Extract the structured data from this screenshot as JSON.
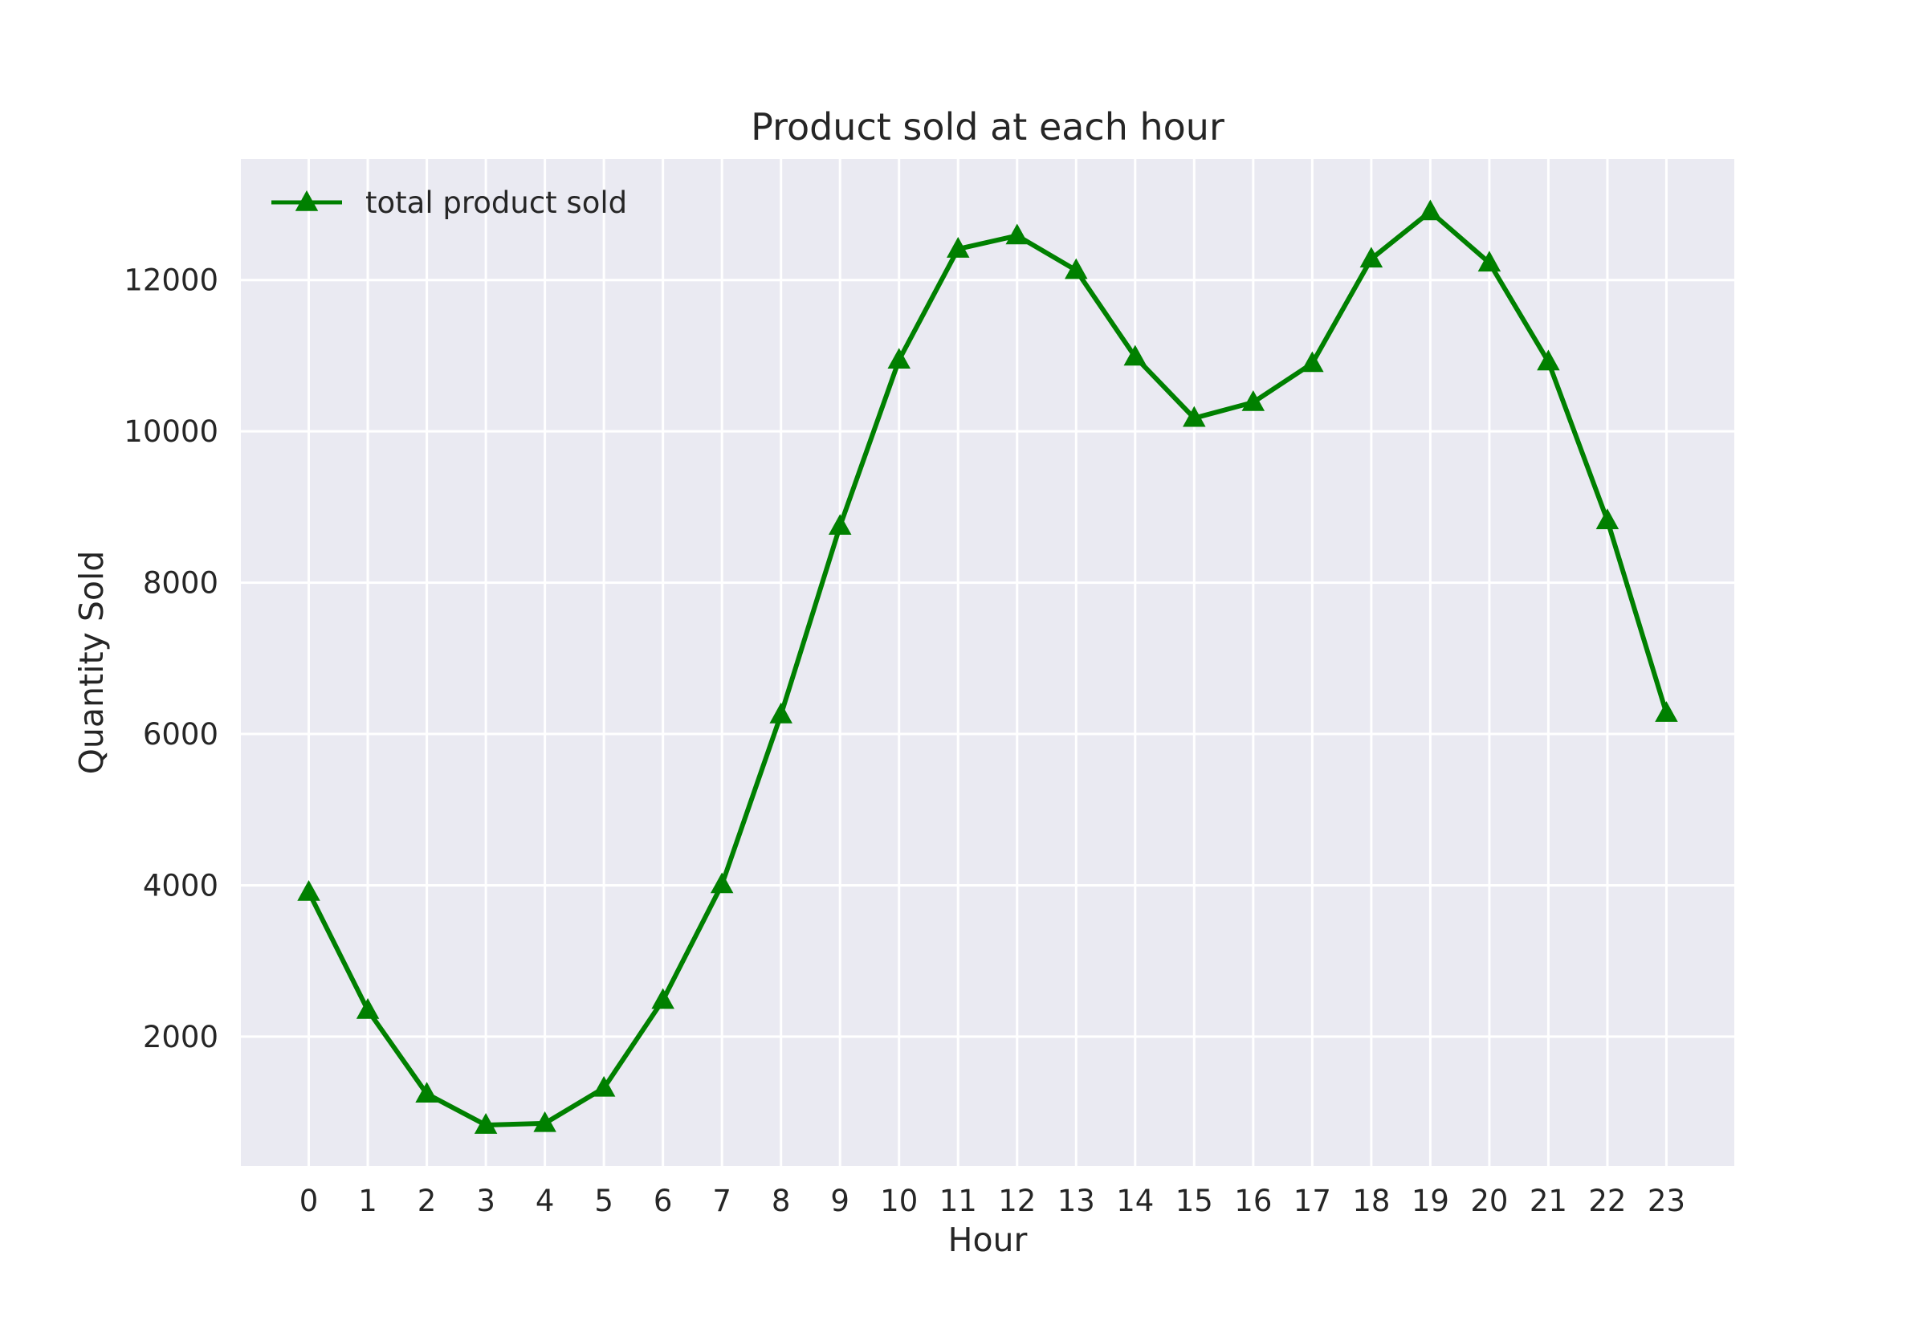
{
  "chart_data": {
    "type": "line",
    "title": "Product sold at each hour",
    "xlabel": "Hour",
    "ylabel": "Quantity Sold",
    "x": [
      0,
      1,
      2,
      3,
      4,
      5,
      6,
      7,
      8,
      9,
      10,
      11,
      12,
      13,
      14,
      15,
      16,
      17,
      18,
      19,
      20,
      21,
      22,
      23
    ],
    "x_tick_labels": [
      "0",
      "1",
      "2",
      "3",
      "4",
      "5",
      "6",
      "7",
      "8",
      "9",
      "10",
      "11",
      "12",
      "13",
      "14",
      "15",
      "16",
      "17",
      "18",
      "19",
      "20",
      "21",
      "22",
      "23"
    ],
    "y_ticks": [
      2000,
      4000,
      6000,
      8000,
      10000,
      12000
    ],
    "y_tick_labels": [
      "2000",
      "4000",
      "6000",
      "8000",
      "10000",
      "12000"
    ],
    "xlim": [
      -1.15,
      24.15
    ],
    "ylim": [
      290,
      13600
    ],
    "grid": true,
    "legend_position": "upper-left",
    "series": [
      {
        "name": "total product sold",
        "color": "#008000",
        "marker": "triangle-up",
        "values": [
          3910,
          2350,
          1243,
          831,
          854,
          1321,
          2482,
          4011,
          6256,
          8748,
          10944,
          12411,
          12587,
          12129,
          10984,
          10175,
          10384,
          10899,
          12280,
          12905,
          12228,
          10921,
          8822,
          6275
        ]
      }
    ]
  },
  "colors": {
    "plot_background": "#eaeaf2",
    "grid": "#ffffff",
    "line": "#008000"
  }
}
